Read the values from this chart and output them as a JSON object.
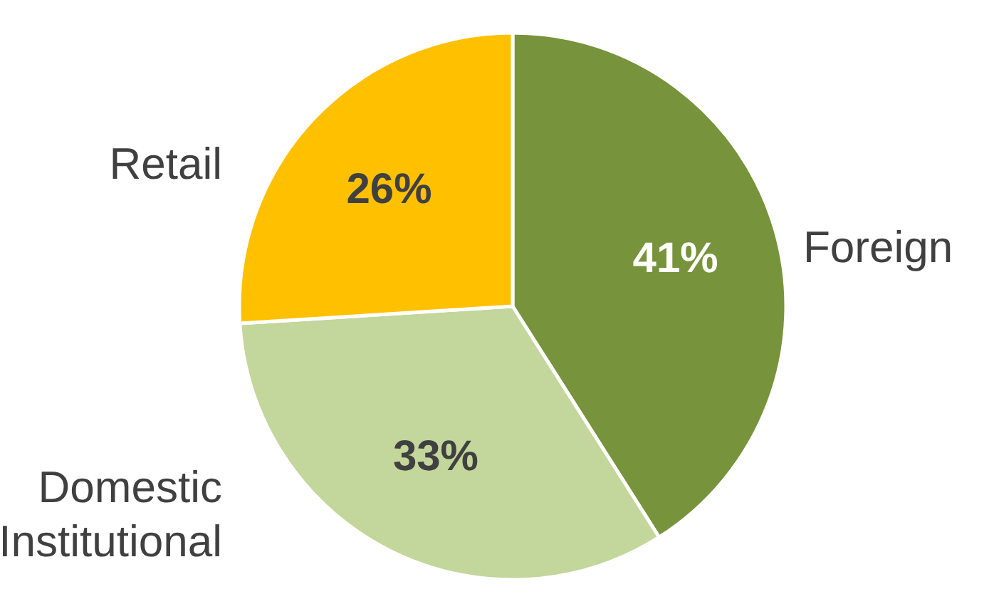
{
  "chart_data": {
    "type": "pie",
    "categories": [
      "Foreign",
      "Domestic Institutional",
      "Retail"
    ],
    "values": [
      41,
      33,
      26
    ],
    "colors": [
      "#77933c",
      "#c3d69b",
      "#ffc000"
    ],
    "value_labels": [
      "41%",
      "33%",
      "26%"
    ]
  }
}
